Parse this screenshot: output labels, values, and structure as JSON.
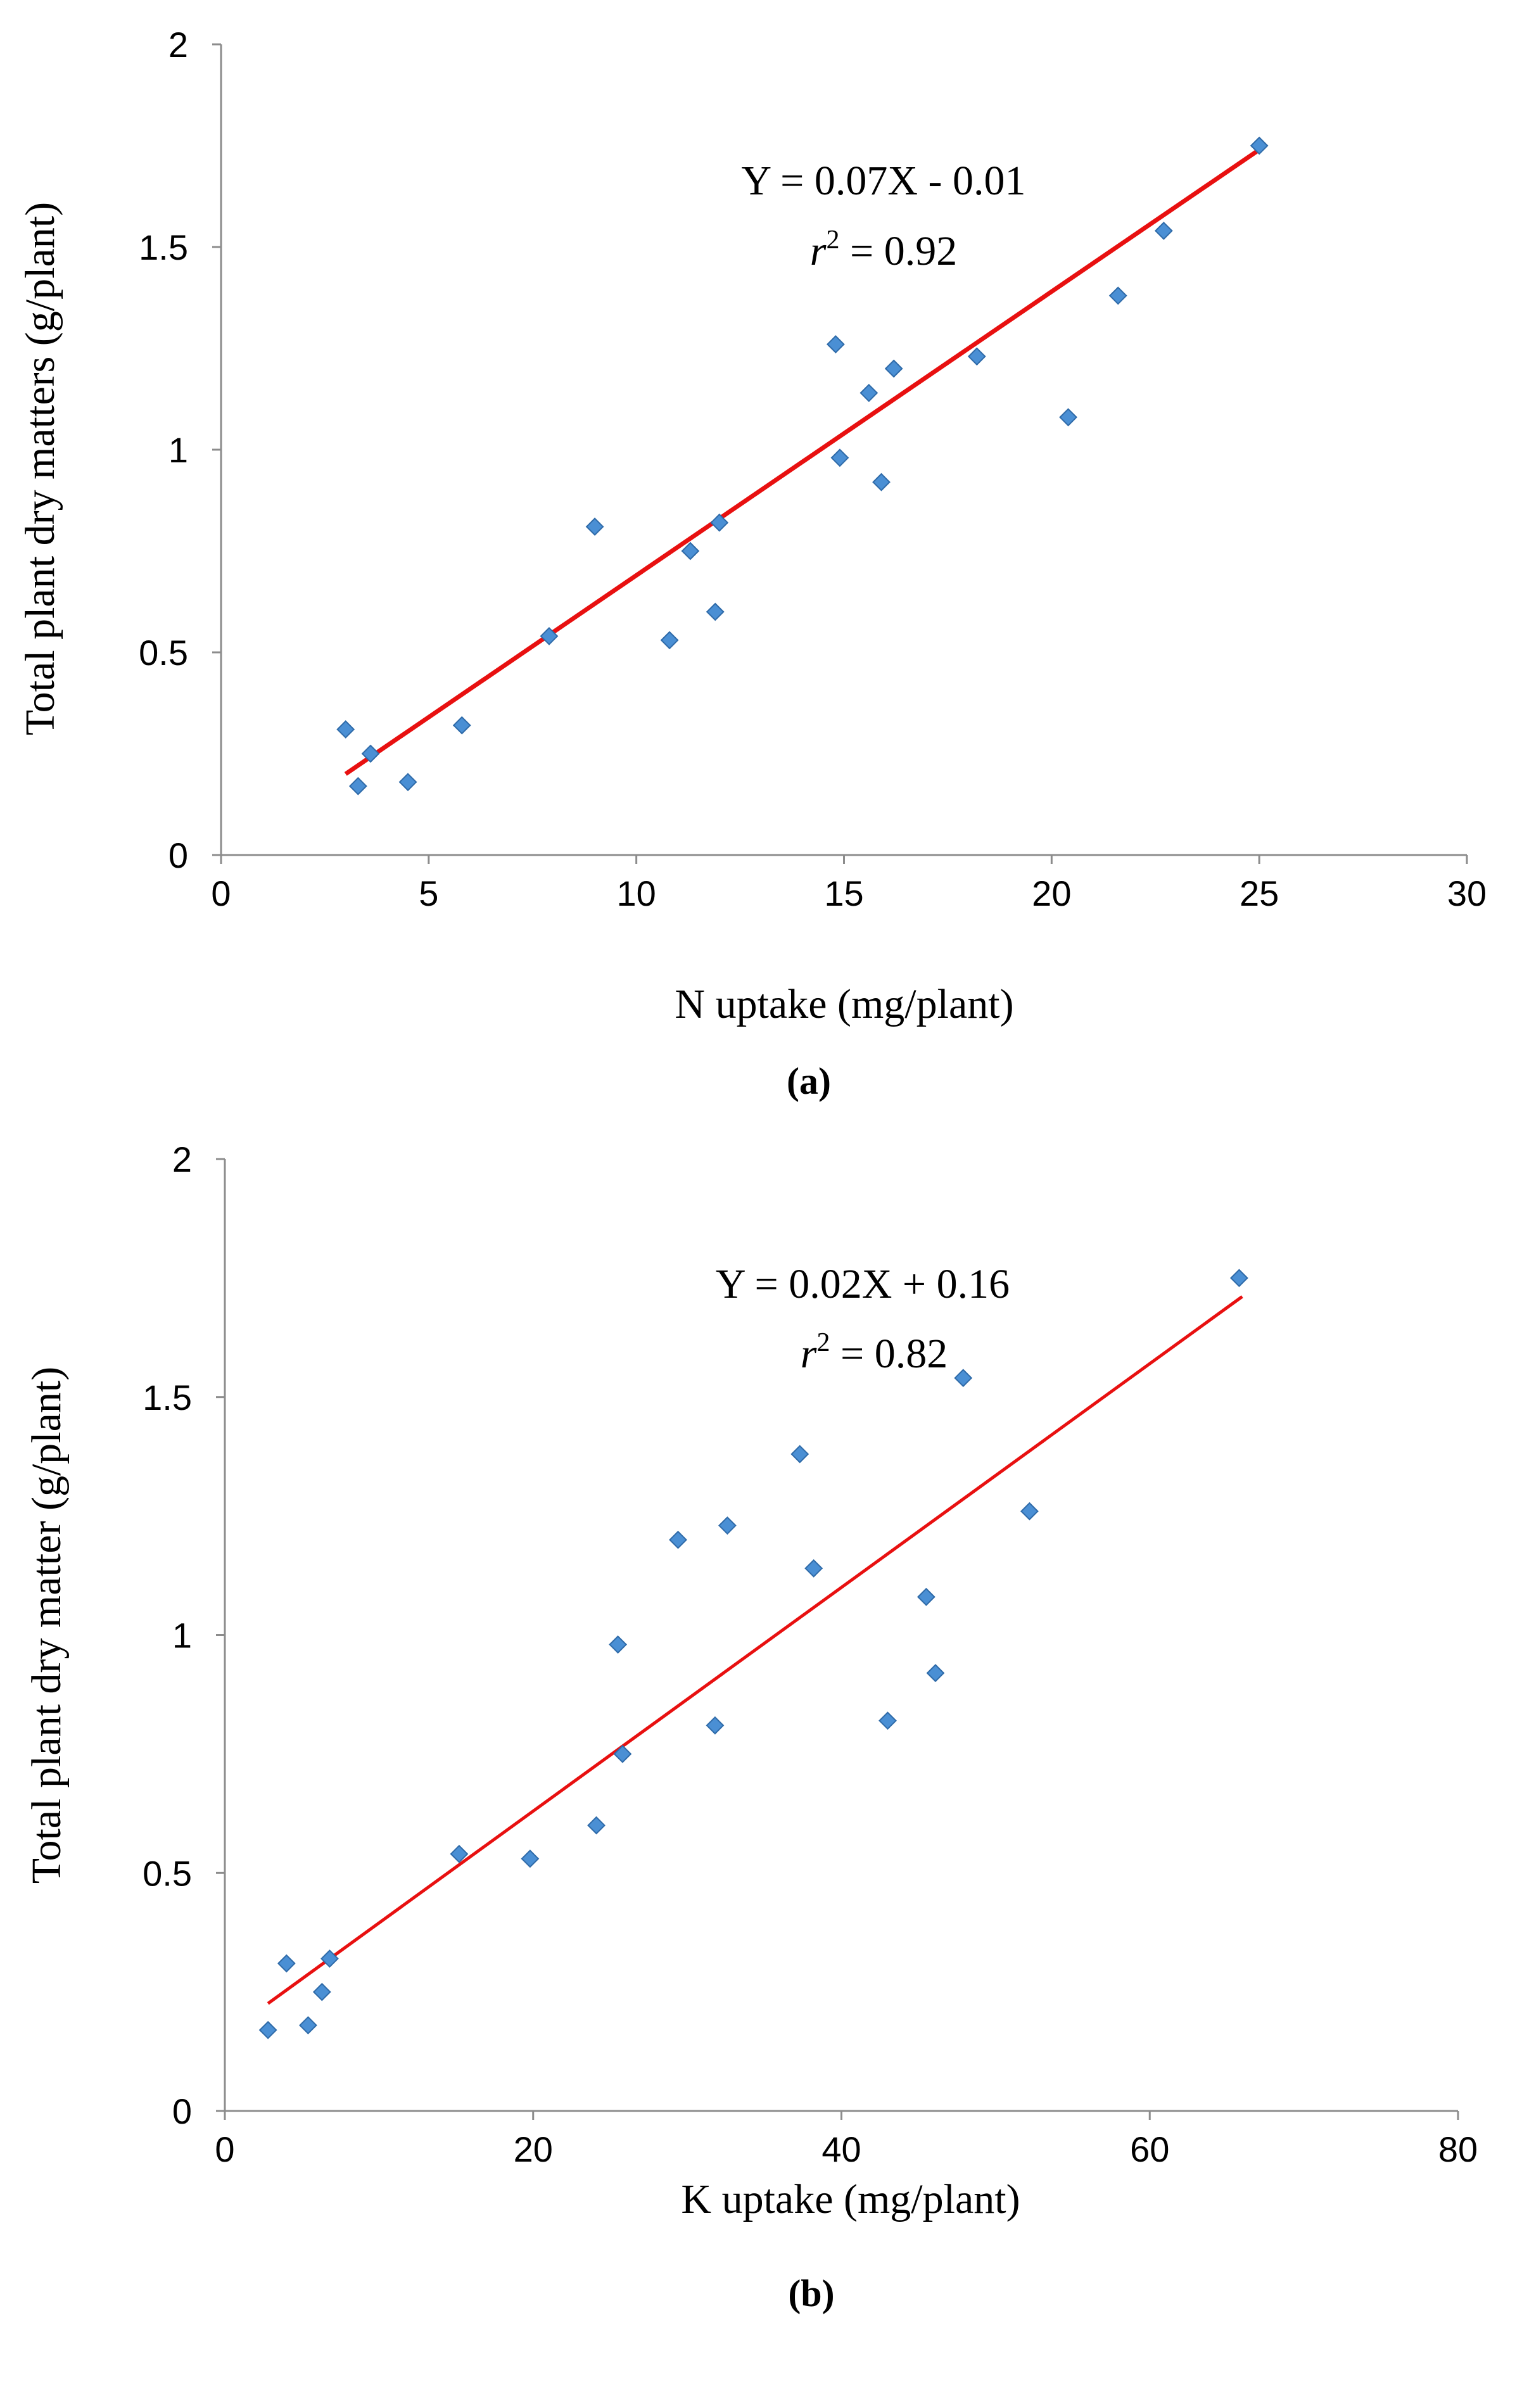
{
  "chart_data": [
    {
      "type": "scatter",
      "panel_label": "(a)",
      "xlabel": "N uptake (mg/plant)",
      "ylabel": "Total plant dry matters (g/plant)",
      "xlim": [
        0,
        30
      ],
      "ylim": [
        0,
        2
      ],
      "xticks": [
        "0",
        "5",
        "10",
        "15",
        "20",
        "25",
        "30"
      ],
      "yticks": [
        "0",
        "0.5",
        "1",
        "1.5",
        "2"
      ],
      "equation": "Y = 0.07X - 0.01",
      "r2_label": "r",
      "r2_sup": "2",
      "r2_value": " = 0.92",
      "fit": {
        "slope": 0.07,
        "intercept": -0.01,
        "x_range": [
          3,
          25
        ]
      },
      "points": [
        [
          3.0,
          0.31
        ],
        [
          3.3,
          0.17
        ],
        [
          3.6,
          0.25
        ],
        [
          4.5,
          0.18
        ],
        [
          5.8,
          0.32
        ],
        [
          7.9,
          0.54
        ],
        [
          9.0,
          0.81
        ],
        [
          10.8,
          0.53
        ],
        [
          11.3,
          0.75
        ],
        [
          11.9,
          0.6
        ],
        [
          12.0,
          0.82
        ],
        [
          14.8,
          1.26
        ],
        [
          14.9,
          0.98
        ],
        [
          15.6,
          1.14
        ],
        [
          15.9,
          0.92
        ],
        [
          16.2,
          1.2
        ],
        [
          18.2,
          1.23
        ],
        [
          20.4,
          1.08
        ],
        [
          21.6,
          1.38
        ],
        [
          22.7,
          1.54
        ],
        [
          25.0,
          1.75
        ]
      ]
    },
    {
      "type": "scatter",
      "panel_label": "(b)",
      "xlabel": "K uptake (mg/plant)",
      "ylabel": "Total plant dry matter (g/plant)",
      "xlim": [
        0,
        80
      ],
      "ylim": [
        0,
        2
      ],
      "xticks": [
        "0",
        "20",
        "40",
        "60",
        "80"
      ],
      "yticks": [
        "0",
        "0.5",
        "1",
        "1.5",
        "2"
      ],
      "equation": "Y = 0.02X + 0.16",
      "r2_label": "r",
      "r2_sup": "2",
      "r2_value": " = 0.82",
      "fit": {
        "slope": 0.0235,
        "intercept": 0.16,
        "x_range": [
          2.8,
          66
        ]
      },
      "points": [
        [
          2.8,
          0.17
        ],
        [
          4.0,
          0.31
        ],
        [
          5.4,
          0.18
        ],
        [
          6.3,
          0.25
        ],
        [
          6.8,
          0.32
        ],
        [
          15.2,
          0.54
        ],
        [
          19.8,
          0.53
        ],
        [
          24.1,
          0.6
        ],
        [
          25.5,
          0.98
        ],
        [
          25.8,
          0.75
        ],
        [
          29.4,
          1.2
        ],
        [
          31.8,
          0.81
        ],
        [
          32.6,
          1.23
        ],
        [
          37.3,
          1.38
        ],
        [
          38.2,
          1.14
        ],
        [
          43.0,
          0.82
        ],
        [
          45.5,
          1.08
        ],
        [
          46.1,
          0.92
        ],
        [
          47.9,
          1.54
        ],
        [
          52.2,
          1.26
        ],
        [
          65.8,
          1.75
        ]
      ]
    }
  ]
}
